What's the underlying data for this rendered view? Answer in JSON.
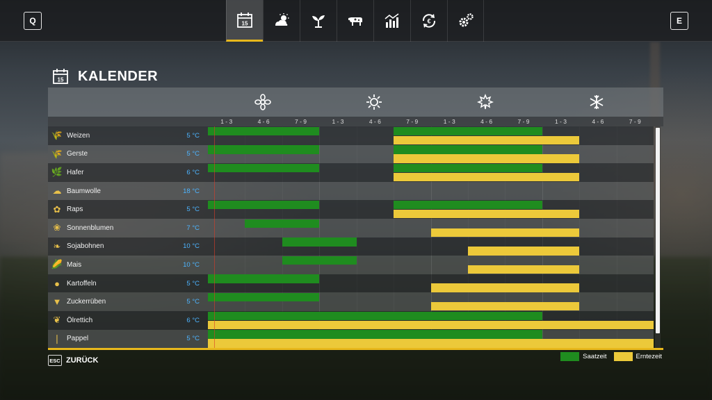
{
  "keys": {
    "left": "Q",
    "right": "E"
  },
  "tabs": [
    {
      "icon": "calendar-icon",
      "active": true
    },
    {
      "icon": "weather-icon",
      "active": false
    },
    {
      "icon": "sprout-icon",
      "active": false
    },
    {
      "icon": "cow-icon",
      "active": false
    },
    {
      "icon": "statistics-icon",
      "active": false
    },
    {
      "icon": "cycle-icon",
      "active": false
    },
    {
      "icon": "settings-icon",
      "active": false
    }
  ],
  "title_icon_number": "15",
  "page_title": "KALENDER",
  "seasons": [
    {
      "icon": "flower-icon"
    },
    {
      "icon": "sun-icon"
    },
    {
      "icon": "leaf-icon"
    },
    {
      "icon": "snowflake-icon"
    }
  ],
  "months": [
    "1 - 3",
    "4 - 6",
    "7 - 9",
    "1 - 3",
    "4 - 6",
    "7 - 9",
    "1 - 3",
    "4 - 6",
    "7 - 9",
    "1 - 3",
    "4 - 6",
    "7 - 9"
  ],
  "crops": [
    {
      "name": "Weizen",
      "temp": "5 °C",
      "icon": "wheat-icon",
      "glyph": "🌾",
      "sow": [
        [
          0,
          3
        ],
        [
          5,
          9
        ]
      ],
      "harvest": [
        [
          5,
          10
        ]
      ]
    },
    {
      "name": "Gerste",
      "temp": "5 °C",
      "icon": "barley-icon",
      "glyph": "🌾",
      "sow": [
        [
          0,
          3
        ],
        [
          5,
          9
        ]
      ],
      "harvest": [
        [
          5,
          10
        ]
      ]
    },
    {
      "name": "Hafer",
      "temp": "6 °C",
      "icon": "oat-icon",
      "glyph": "🌿",
      "sow": [
        [
          0,
          3
        ],
        [
          5,
          9
        ]
      ],
      "harvest": [
        [
          5,
          10
        ]
      ]
    },
    {
      "name": "Baumwolle",
      "temp": "18 °C",
      "icon": "cotton-icon",
      "glyph": "☁",
      "sow": [],
      "harvest": []
    },
    {
      "name": "Raps",
      "temp": "5 °C",
      "icon": "canola-icon",
      "glyph": "✿",
      "sow": [
        [
          0,
          3
        ],
        [
          5,
          9
        ]
      ],
      "harvest": [
        [
          5,
          10
        ]
      ]
    },
    {
      "name": "Sonnenblumen",
      "temp": "7 °C",
      "icon": "sunflower-icon",
      "glyph": "❀",
      "sow": [
        [
          1,
          3
        ]
      ],
      "harvest": [
        [
          6,
          10
        ]
      ]
    },
    {
      "name": "Sojabohnen",
      "temp": "10 °C",
      "icon": "soybean-icon",
      "glyph": "❧",
      "sow": [
        [
          2,
          4
        ]
      ],
      "harvest": [
        [
          7,
          10
        ]
      ]
    },
    {
      "name": "Mais",
      "temp": "10 °C",
      "icon": "corn-icon",
      "glyph": "🌽",
      "sow": [
        [
          2,
          4
        ]
      ],
      "harvest": [
        [
          7,
          10
        ]
      ]
    },
    {
      "name": "Kartoffeln",
      "temp": "5 °C",
      "icon": "potato-icon",
      "glyph": "●",
      "sow": [
        [
          0,
          3
        ]
      ],
      "harvest": [
        [
          6,
          10
        ]
      ]
    },
    {
      "name": "Zuckerrüben",
      "temp": "5 °C",
      "icon": "sugarbeet-icon",
      "glyph": "▼",
      "sow": [
        [
          0,
          3
        ]
      ],
      "harvest": [
        [
          6,
          10
        ]
      ]
    },
    {
      "name": "Ölrettich",
      "temp": "6 °C",
      "icon": "oilradish-icon",
      "glyph": "❦",
      "sow": [
        [
          0,
          9
        ]
      ],
      "harvest": [
        [
          0,
          12
        ]
      ]
    },
    {
      "name": "Pappel",
      "temp": "5 °C",
      "icon": "poplar-icon",
      "glyph": "❘",
      "sow": [
        [
          0,
          9
        ]
      ],
      "harvest": [
        [
          0,
          12
        ]
      ]
    }
  ],
  "footer": {
    "esc_key": "ESC",
    "back_label": "ZURÜCK"
  },
  "legend": {
    "sow_label": "Saatzeit",
    "harvest_label": "Erntezeit"
  },
  "colors": {
    "sow": "#1f8c1f",
    "harvest": "#ecc93a",
    "accent": "#e8b81c",
    "temp": "#4db4ff"
  }
}
